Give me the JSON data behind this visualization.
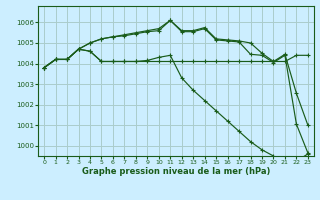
{
  "background_color": "#cceeff",
  "grid_color": "#aacccc",
  "line_color": "#1a5c1a",
  "xlabel": "Graphe pression niveau de la mer (hPa)",
  "ylim": [
    999.5,
    1006.8
  ],
  "xlim": [
    -0.5,
    23.5
  ],
  "yticks": [
    1000,
    1001,
    1002,
    1003,
    1004,
    1005,
    1006
  ],
  "xticks": [
    0,
    1,
    2,
    3,
    4,
    5,
    6,
    7,
    8,
    9,
    10,
    11,
    12,
    13,
    14,
    15,
    16,
    17,
    18,
    19,
    20,
    21,
    22,
    23
  ],
  "series": [
    [
      1003.8,
      1004.2,
      1004.2,
      1004.7,
      1004.6,
      1004.1,
      1004.1,
      1004.1,
      1004.1,
      1004.1,
      1004.1,
      1004.1,
      1004.1,
      1004.1,
      1004.1,
      1004.1,
      1004.1,
      1004.1,
      1004.1,
      1004.1,
      1004.1,
      1004.1,
      1004.4,
      1004.4
    ],
    [
      1003.8,
      1004.2,
      1004.2,
      1004.7,
      1005.0,
      1005.2,
      1005.3,
      1005.4,
      1005.5,
      1005.6,
      1005.7,
      1006.1,
      1005.6,
      1005.6,
      1005.75,
      1005.2,
      1005.15,
      1005.1,
      1005.0,
      1004.5,
      1004.1,
      1004.45,
      1002.55,
      1001.0
    ],
    [
      1003.8,
      1004.2,
      1004.2,
      1004.7,
      1005.0,
      1005.2,
      1005.3,
      1005.35,
      1005.45,
      1005.55,
      1005.6,
      1006.1,
      1005.55,
      1005.55,
      1005.7,
      1005.15,
      1005.1,
      1005.05,
      1004.45,
      1004.4,
      1004.05,
      1004.4,
      1001.05,
      999.65
    ],
    [
      1003.8,
      1004.2,
      1004.2,
      1004.7,
      1004.6,
      1004.1,
      1004.1,
      1004.1,
      1004.1,
      1004.15,
      1004.3,
      1004.4,
      1003.3,
      1002.7,
      1002.2,
      1001.7,
      1001.2,
      1000.7,
      1000.2,
      999.8,
      999.5,
      999.1,
      999.25,
      999.6
    ]
  ]
}
